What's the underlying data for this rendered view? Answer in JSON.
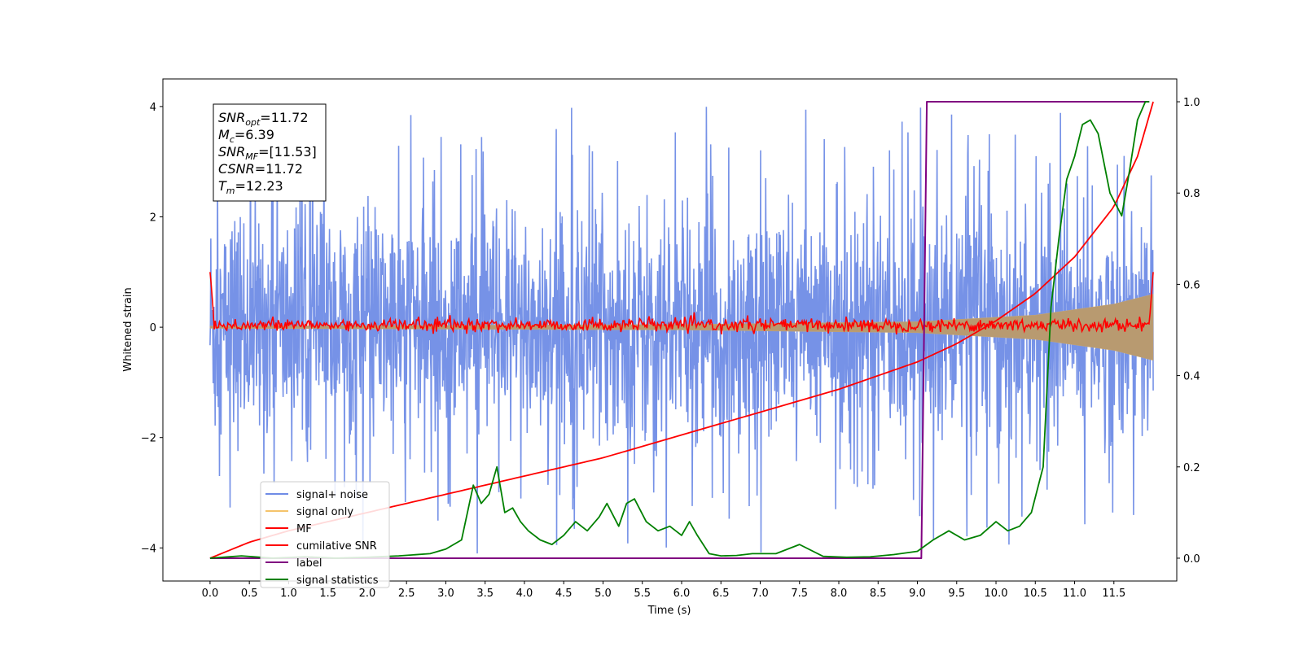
{
  "chart_data": {
    "type": "line",
    "xlabel": "Time (s)",
    "ylabel": "Whitened strain",
    "xlim": [
      -0.6,
      12.3
    ],
    "ylim_left": [
      -4.6,
      4.5
    ],
    "ylim_right": [
      -0.05,
      1.05
    ],
    "x_ticks": [
      0.0,
      0.5,
      1.0,
      1.5,
      2.0,
      2.5,
      3.0,
      3.5,
      4.0,
      4.5,
      5.0,
      5.5,
      6.0,
      6.5,
      7.0,
      7.5,
      8.0,
      8.5,
      9.0,
      9.5,
      10.0,
      10.5,
      11.0,
      11.5
    ],
    "x_tick_labels": [
      "0.0",
      "0.5",
      "1.0",
      "1.5",
      "2.0",
      "2.5",
      "3.0",
      "3.5",
      "4.0",
      "4.5",
      "5.0",
      "5.5",
      "6.0",
      "6.5",
      "7.0",
      "7.5",
      "8.0",
      "8.5",
      "9.0",
      "9.5",
      "10.0",
      "10.5",
      "11.0",
      "11.5"
    ],
    "y_left_ticks": [
      -4,
      -2,
      0,
      2,
      4
    ],
    "y_left_tick_labels": [
      "−4",
      "−2",
      "0",
      "2",
      "4"
    ],
    "y_right_ticks": [
      0.0,
      0.2,
      0.4,
      0.6,
      0.8,
      1.0
    ],
    "y_right_tick_labels": [
      "0.0",
      "0.2",
      "0.4",
      "0.6",
      "0.8",
      "1.0"
    ],
    "grid": false,
    "legend_position": "lower-left",
    "series": [
      {
        "name": "signal+ noise",
        "axis": "left",
        "color": "#6f8ce6",
        "style": "noise",
        "x_range": [
          0.0,
          12.0
        ],
        "typical_amplitude": [
          -2.5,
          2.8
        ],
        "peak_max": 4.05,
        "peak_min": -4.1
      },
      {
        "name": "signal only",
        "axis": "left",
        "color": "#f5c36b",
        "style": "chirp",
        "x_range": [
          0.0,
          12.0
        ],
        "envelope": [
          [
            0.0,
            0.02
          ],
          [
            6.0,
            0.05
          ],
          [
            9.0,
            0.1
          ],
          [
            10.5,
            0.22
          ],
          [
            11.5,
            0.42
          ],
          [
            12.0,
            0.6
          ]
        ]
      },
      {
        "name": "MF",
        "axis": "left",
        "color": "#ff0000",
        "style": "mf",
        "x_range": [
          0.0,
          12.0
        ],
        "start_value": 1.0,
        "end_value": 1.0,
        "typical_amplitude": 0.15
      },
      {
        "name": "cumilative SNR",
        "axis": "right",
        "color": "#ff0000",
        "x": [
          0.0,
          0.5,
          1.0,
          2.0,
          3.0,
          4.0,
          5.0,
          6.0,
          7.0,
          8.0,
          9.0,
          9.5,
          10.0,
          10.5,
          11.0,
          11.5,
          11.8,
          12.0
        ],
        "y": [
          0.0,
          0.035,
          0.06,
          0.1,
          0.14,
          0.18,
          0.22,
          0.27,
          0.32,
          0.37,
          0.43,
          0.47,
          0.52,
          0.58,
          0.66,
          0.77,
          0.88,
          1.0
        ]
      },
      {
        "name": "label",
        "axis": "right",
        "color": "#800080",
        "x": [
          0.0,
          9.05,
          9.12,
          11.95
        ],
        "y": [
          0.0,
          0.0,
          1.0,
          1.0
        ]
      },
      {
        "name": "signal statistics",
        "axis": "right",
        "color": "#008000",
        "x": [
          0.0,
          0.4,
          0.8,
          1.2,
          1.6,
          2.0,
          2.4,
          2.8,
          3.0,
          3.2,
          3.35,
          3.45,
          3.55,
          3.65,
          3.75,
          3.85,
          3.95,
          4.05,
          4.2,
          4.35,
          4.5,
          4.65,
          4.8,
          4.95,
          5.05,
          5.2,
          5.3,
          5.4,
          5.55,
          5.7,
          5.85,
          6.0,
          6.1,
          6.2,
          6.35,
          6.5,
          6.7,
          6.9,
          7.2,
          7.5,
          7.8,
          8.1,
          8.4,
          8.7,
          9.0,
          9.2,
          9.4,
          9.6,
          9.8,
          10.0,
          10.15,
          10.3,
          10.45,
          10.6,
          10.7,
          10.8,
          10.9,
          11.0,
          11.1,
          11.2,
          11.3,
          11.45,
          11.6,
          11.7,
          11.8,
          11.9,
          11.95
        ],
        "y": [
          0.0,
          0.005,
          0.0,
          0.003,
          0.0,
          0.002,
          0.005,
          0.01,
          0.02,
          0.04,
          0.16,
          0.12,
          0.14,
          0.2,
          0.1,
          0.11,
          0.08,
          0.06,
          0.04,
          0.03,
          0.05,
          0.08,
          0.06,
          0.09,
          0.12,
          0.07,
          0.12,
          0.13,
          0.08,
          0.06,
          0.07,
          0.05,
          0.08,
          0.05,
          0.01,
          0.005,
          0.006,
          0.01,
          0.01,
          0.03,
          0.004,
          0.002,
          0.003,
          0.008,
          0.015,
          0.04,
          0.06,
          0.04,
          0.05,
          0.08,
          0.06,
          0.07,
          0.1,
          0.2,
          0.55,
          0.7,
          0.83,
          0.88,
          0.95,
          0.96,
          0.93,
          0.8,
          0.75,
          0.85,
          0.96,
          1.0,
          1.0
        ]
      }
    ],
    "annotation_lines": [
      {
        "name": "SNR",
        "sub": "opt",
        "value": "=11.72"
      },
      {
        "name": "M",
        "sub": "c",
        "value": "=6.39"
      },
      {
        "name": "SNR",
        "sub": "MF",
        "value": "=[11.53]"
      },
      {
        "name": "CSNR",
        "sub": "",
        "value": "=11.72"
      },
      {
        "name": "T",
        "sub": "m",
        "value": "=12.23"
      }
    ]
  }
}
